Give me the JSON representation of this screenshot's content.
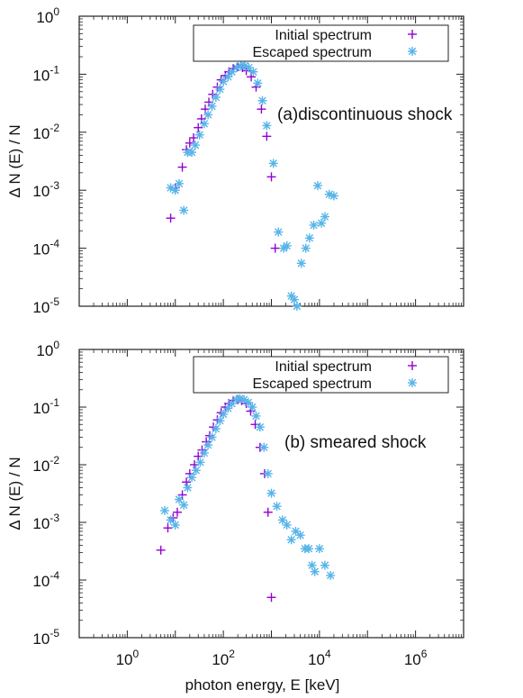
{
  "chart_data": [
    {
      "type": "scatter",
      "panel": "a",
      "annotation": "(a)discontinuous shock",
      "ylabel": "Δ N (E) / N",
      "xlabel": "",
      "xscale": "log",
      "yscale": "log",
      "xlim": [
        0.1,
        10000000
      ],
      "ylim": [
        1e-05,
        1
      ],
      "grid": false,
      "legend_position": "top-right",
      "y_ticks": [
        "10⁻⁵",
        "10⁻⁴",
        "10⁻³",
        "10⁻²",
        "10⁻¹",
        "10⁰"
      ],
      "series": [
        {
          "name": "Initial spectrum",
          "marker": "plus",
          "color": "#9400d3",
          "points": [
            [
              8,
              0.00033
            ],
            [
              10,
              0.0011
            ],
            [
              14,
              0.0025
            ],
            [
              17,
              0.005
            ],
            [
              20,
              0.0065
            ],
            [
              24,
              0.008
            ],
            [
              30,
              0.012
            ],
            [
              35,
              0.017
            ],
            [
              42,
              0.025
            ],
            [
              50,
              0.033
            ],
            [
              60,
              0.045
            ],
            [
              75,
              0.06
            ],
            [
              90,
              0.08
            ],
            [
              110,
              0.095
            ],
            [
              130,
              0.11
            ],
            [
              160,
              0.125
            ],
            [
              200,
              0.135
            ],
            [
              250,
              0.13
            ],
            [
              300,
              0.115
            ],
            [
              380,
              0.09
            ],
            [
              480,
              0.06
            ],
            [
              620,
              0.025
            ],
            [
              800,
              0.0085
            ],
            [
              1000,
              0.0017
            ],
            [
              1200,
              0.0001
            ]
          ]
        },
        {
          "name": "Escaped spectrum",
          "marker": "star",
          "color": "#56b4e9",
          "points": [
            [
              8,
              0.0011
            ],
            [
              10,
              0.001
            ],
            [
              12,
              0.0013
            ],
            [
              15,
              0.00045
            ],
            [
              18,
              0.0045
            ],
            [
              22,
              0.0045
            ],
            [
              26,
              0.006
            ],
            [
              32,
              0.009
            ],
            [
              40,
              0.014
            ],
            [
              48,
              0.02
            ],
            [
              58,
              0.028
            ],
            [
              70,
              0.04
            ],
            [
              85,
              0.055
            ],
            [
              100,
              0.075
            ],
            [
              125,
              0.09
            ],
            [
              150,
              0.11
            ],
            [
              190,
              0.13
            ],
            [
              230,
              0.14
            ],
            [
              280,
              0.14
            ],
            [
              340,
              0.13
            ],
            [
              420,
              0.11
            ],
            [
              520,
              0.07
            ],
            [
              650,
              0.035
            ],
            [
              800,
              0.013
            ],
            [
              1100,
              0.0029
            ],
            [
              1400,
              0.00019
            ],
            [
              1800,
              0.0001
            ],
            [
              2100,
              0.00011
            ],
            [
              2600,
              1.5e-05
            ],
            [
              3000,
              1.3e-05
            ],
            [
              3400,
              1e-05
            ],
            [
              4200,
              5.5e-05
            ],
            [
              5200,
              0.0001
            ],
            [
              6200,
              0.00015
            ],
            [
              7600,
              0.00025
            ],
            [
              9200,
              0.0012
            ],
            [
              11000,
              0.00027
            ],
            [
              13000,
              0.00035
            ],
            [
              16000,
              0.00085
            ],
            [
              20000,
              0.0008
            ]
          ]
        }
      ]
    },
    {
      "type": "scatter",
      "panel": "b",
      "annotation": "(b) smeared shock",
      "ylabel": "Δ N (E) / N",
      "xlabel": "photon energy, E [keV]",
      "xscale": "log",
      "yscale": "log",
      "xlim": [
        0.1,
        10000000
      ],
      "ylim": [
        1e-05,
        1
      ],
      "grid": false,
      "legend_position": "top-right",
      "x_ticks": [
        "10⁰",
        "10²",
        "10⁴",
        "10⁶"
      ],
      "y_ticks": [
        "10⁻⁵",
        "10⁻⁴",
        "10⁻³",
        "10⁻²",
        "10⁻¹",
        "10⁰"
      ],
      "series": [
        {
          "name": "Initial spectrum",
          "marker": "plus",
          "color": "#9400d3",
          "points": [
            [
              5,
              0.00033
            ],
            [
              7,
              0.0008
            ],
            [
              9,
              0.0012
            ],
            [
              11,
              0.0015
            ],
            [
              14,
              0.003
            ],
            [
              17,
              0.005
            ],
            [
              20,
              0.007
            ],
            [
              25,
              0.01
            ],
            [
              30,
              0.014
            ],
            [
              36,
              0.018
            ],
            [
              44,
              0.025
            ],
            [
              52,
              0.032
            ],
            [
              62,
              0.045
            ],
            [
              75,
              0.06
            ],
            [
              90,
              0.08
            ],
            [
              110,
              0.1
            ],
            [
              130,
              0.115
            ],
            [
              160,
              0.13
            ],
            [
              200,
              0.135
            ],
            [
              240,
              0.13
            ],
            [
              300,
              0.115
            ],
            [
              370,
              0.085
            ],
            [
              460,
              0.05
            ],
            [
              580,
              0.02
            ],
            [
              720,
              0.007
            ],
            [
              850,
              0.0015
            ],
            [
              1000,
              5e-05
            ]
          ]
        },
        {
          "name": "Escaped spectrum",
          "marker": "star",
          "color": "#56b4e9",
          "points": [
            [
              6,
              0.0016
            ],
            [
              8,
              0.0011
            ],
            [
              10,
              0.0009
            ],
            [
              12,
              0.0025
            ],
            [
              15,
              0.002
            ],
            [
              18,
              0.004
            ],
            [
              22,
              0.006
            ],
            [
              27,
              0.008
            ],
            [
              33,
              0.011
            ],
            [
              40,
              0.016
            ],
            [
              48,
              0.022
            ],
            [
              58,
              0.03
            ],
            [
              70,
              0.042
            ],
            [
              85,
              0.058
            ],
            [
              100,
              0.075
            ],
            [
              125,
              0.095
            ],
            [
              150,
              0.115
            ],
            [
              185,
              0.135
            ],
            [
              220,
              0.14
            ],
            [
              270,
              0.135
            ],
            [
              330,
              0.12
            ],
            [
              400,
              0.1
            ],
            [
              480,
              0.07
            ],
            [
              580,
              0.045
            ],
            [
              700,
              0.02
            ],
            [
              850,
              0.007
            ],
            [
              1000,
              0.0032
            ],
            [
              1300,
              0.0019
            ],
            [
              1700,
              0.0011
            ],
            [
              2100,
              0.0009
            ],
            [
              2600,
              0.0005
            ],
            [
              3200,
              0.0007
            ],
            [
              4000,
              0.0006
            ],
            [
              5000,
              0.00035
            ],
            [
              6000,
              0.00035
            ],
            [
              7000,
              0.00018
            ],
            [
              8000,
              0.00014
            ],
            [
              10000,
              0.00035
            ],
            [
              13000,
              0.00018
            ],
            [
              17000,
              0.00012
            ]
          ]
        }
      ]
    }
  ]
}
